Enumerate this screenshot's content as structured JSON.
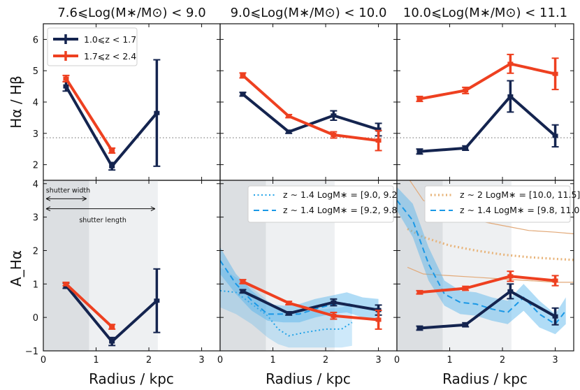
{
  "chart_data": {
    "type": "line",
    "figure": {
      "xlabel": "Radius / kpc",
      "ylabel_top": "Hα / Hβ",
      "ylabel_bottom": "A_Hα",
      "xlim": [
        0,
        3.35
      ],
      "xticks": [
        0,
        1,
        2,
        3
      ],
      "ylim_top": [
        1.5,
        6.5
      ],
      "yticks_top": [
        2,
        3,
        4,
        5,
        6
      ],
      "ylim_bottom": [
        -1,
        4.1
      ],
      "yticks_bottom": [
        -1,
        0,
        1,
        2,
        3,
        4
      ],
      "reference_ratio": 2.86
    },
    "panels": [
      {
        "title": "7.6⩽Log(M∗/M⊙) < 9.0",
        "balmer": {
          "legend": true,
          "series": [
            {
              "name": "1.0⩽z < 1.7",
              "color": "#14244f",
              "x": [
                0.43,
                1.3,
                2.15
              ],
              "y": [
                4.5,
                1.95,
                3.65
              ],
              "err": [
                0.15,
                0.12,
                1.7
              ]
            },
            {
              "name": "1.7⩽z < 2.4",
              "color": "#ee4020",
              "x": [
                0.43,
                1.3
              ],
              "y": [
                4.75,
                2.45
              ],
              "err": [
                0.1,
                0.08
              ]
            }
          ]
        },
        "attenuation": {
          "shading": {
            "dark_end": 0.87,
            "light_end": 2.17
          },
          "series": [
            {
              "name": "1.0⩽z < 1.7",
              "color": "#14244f",
              "x": [
                0.43,
                1.3,
                2.15
              ],
              "y": [
                0.95,
                -0.72,
                0.5
              ],
              "err": [
                0.08,
                0.12,
                0.95
              ]
            },
            {
              "name": "1.7⩽z < 2.4",
              "color": "#ee4020",
              "x": [
                0.43,
                1.3
              ],
              "y": [
                1.0,
                -0.28
              ],
              "err": [
                0.05,
                0.07
              ]
            }
          ],
          "annotations": [
            {
              "text": "shutter width",
              "x": 0.05,
              "y": 3.73
            },
            {
              "text": "shutter length",
              "x": 0.68,
              "y": 2.85
            }
          ]
        }
      },
      {
        "title": "9.0⩽Log(M∗/M⊙) < 10.0",
        "balmer": {
          "series": [
            {
              "name": "1.0⩽z < 1.7",
              "color": "#14244f",
              "x": [
                0.43,
                1.3,
                2.15,
                3.0
              ],
              "y": [
                4.25,
                3.05,
                3.57,
                3.12
              ],
              "err": [
                0.06,
                0.05,
                0.15,
                0.2
              ]
            },
            {
              "name": "1.7⩽z < 2.4",
              "color": "#ee4020",
              "x": [
                0.43,
                1.3,
                2.15,
                3.0
              ],
              "y": [
                4.85,
                3.55,
                2.95,
                2.77
              ],
              "err": [
                0.08,
                0.05,
                0.1,
                0.32
              ]
            }
          ]
        },
        "attenuation": {
          "shading": {
            "dark_end": 0.87,
            "light_end": 2.17
          },
          "series": [
            {
              "name": "1.0⩽z < 1.7",
              "color": "#14244f",
              "x": [
                0.43,
                1.3,
                2.15,
                3.0
              ],
              "y": [
                0.78,
                0.12,
                0.45,
                0.22
              ],
              "err": [
                0.05,
                0.05,
                0.1,
                0.15
              ]
            },
            {
              "name": "1.7⩽z < 2.4",
              "color": "#ee4020",
              "x": [
                0.43,
                1.3,
                2.15,
                3.0
              ],
              "y": [
                1.07,
                0.43,
                0.05,
                -0.07
              ],
              "err": [
                0.06,
                0.05,
                0.1,
                0.28
              ]
            }
          ],
          "legend": [
            {
              "label": "z ∼ 1.4 LogM∗ = [9.0, 9.2]",
              "style": "dotted",
              "color": "#22a3e8"
            },
            {
              "label": "z ∼ 1.4 LogM∗ = [9.2, 9.8]",
              "style": "dashed",
              "color": "#1a98e6"
            }
          ],
          "literature": [
            {
              "name": "z ∼ 1.4 LogM∗ = [9.0, 9.2]",
              "style": "dotted",
              "color": "#22a3e8",
              "x": [
                0,
                0.3,
                0.6,
                0.9,
                1.1,
                1.3,
                1.6,
                2.0,
                2.3,
                2.5
              ],
              "y": [
                0.8,
                0.75,
                0.4,
                0.05,
                -0.35,
                -0.55,
                -0.45,
                -0.35,
                -0.35,
                -0.15
              ],
              "lo": [
                0.3,
                0.1,
                -0.2,
                -0.6,
                -0.8,
                -0.9,
                -0.9,
                -0.9,
                -0.9,
                -0.85
              ],
              "hi": [
                1.5,
                1.2,
                0.9,
                0.5,
                0.3,
                0.15,
                0.2,
                0.25,
                0.3,
                0.4
              ]
            },
            {
              "name": "z ∼ 1.4 LogM∗ = [9.2, 9.8]",
              "style": "dashed",
              "color": "#1a98e6",
              "x": [
                0,
                0.3,
                0.6,
                0.9,
                1.2,
                1.5,
                1.8,
                2.1,
                2.4,
                2.7,
                3.0
              ],
              "y": [
                1.7,
                1.0,
                0.5,
                0.1,
                0.1,
                0.1,
                0.25,
                0.38,
                0.42,
                0.28,
                0.25
              ],
              "lo": [
                1.3,
                0.7,
                0.2,
                -0.1,
                -0.15,
                -0.15,
                0.0,
                0.1,
                0.15,
                0.0,
                -0.05
              ],
              "hi": [
                2.1,
                1.3,
                0.8,
                0.4,
                0.35,
                0.4,
                0.55,
                0.65,
                0.75,
                0.6,
                0.55
              ]
            }
          ]
        }
      },
      {
        "title": "10.0⩽Log(M∗/M⊙) < 11.1",
        "balmer": {
          "series": [
            {
              "name": "1.0⩽z < 1.7",
              "color": "#14244f",
              "x": [
                0.43,
                1.3,
                2.15,
                3.0
              ],
              "y": [
                2.42,
                2.53,
                4.18,
                2.92
              ],
              "err": [
                0.08,
                0.07,
                0.5,
                0.35
              ]
            },
            {
              "name": "1.7⩽z < 2.4",
              "color": "#ee4020",
              "x": [
                0.43,
                1.3,
                2.15,
                3.0
              ],
              "y": [
                4.1,
                4.37,
                5.22,
                4.9
              ],
              "err": [
                0.08,
                0.1,
                0.3,
                0.5
              ]
            }
          ]
        },
        "attenuation": {
          "shading": {
            "dark_end": 0.87,
            "light_end": 2.17
          },
          "series": [
            {
              "name": "1.0⩽z < 1.7",
              "color": "#14244f",
              "x": [
                0.43,
                1.3,
                2.15,
                3.0
              ],
              "y": [
                -0.32,
                -0.22,
                0.78,
                0.03
              ],
              "err": [
                0.06,
                0.06,
                0.22,
                0.25
              ]
            },
            {
              "name": "1.7⩽z < 2.4",
              "color": "#ee4020",
              "x": [
                0.43,
                1.3,
                2.15,
                3.0
              ],
              "y": [
                0.75,
                0.87,
                1.23,
                1.1
              ],
              "err": [
                0.05,
                0.06,
                0.15,
                0.15
              ]
            }
          ],
          "legend": [
            {
              "label": "z ∼ 2 LogM∗ = [10.0, 11.5]",
              "style": "dotted",
              "color": "#e8b47a"
            },
            {
              "label": "z ∼ 1.4 LogM∗ = [9.8, 11.0]",
              "style": "dashed",
              "color": "#1a98e6"
            }
          ],
          "literature": [
            {
              "name": "z ∼ 2 LogM∗ = [10.0, 11.5]",
              "style": "dotted",
              "color": "#e8b47a",
              "x": [
                0.2,
                0.5,
                1.0,
                1.5,
                2.0,
                2.5,
                3.0,
                3.35
              ],
              "y": [
                2.65,
                2.4,
                2.15,
                2.0,
                1.88,
                1.8,
                1.75,
                1.72
              ],
              "lo": [
                1.5,
                1.3,
                1.25,
                1.2,
                1.15,
                1.1,
                1.05,
                1.05
              ],
              "hi": [
                4.2,
                3.5,
                3.1,
                2.9,
                2.75,
                2.6,
                2.55,
                2.5
              ]
            },
            {
              "name": "z ∼ 1.4 LogM∗ = [9.8, 11.0]",
              "style": "dashed",
              "color": "#1a98e6",
              "x": [
                0,
                0.3,
                0.6,
                0.9,
                1.2,
                1.5,
                1.8,
                2.1,
                2.4,
                2.7,
                3.0,
                3.2
              ],
              "y": [
                3.5,
                2.9,
                1.6,
                0.7,
                0.45,
                0.4,
                0.25,
                0.15,
                0.6,
                0.1,
                -0.2,
                0.2
              ],
              "lo": [
                3.2,
                2.4,
                1.1,
                0.35,
                0.1,
                0.05,
                -0.1,
                -0.2,
                0.2,
                -0.3,
                -0.5,
                -0.2
              ],
              "hi": [
                3.9,
                3.4,
                2.1,
                1.1,
                0.8,
                0.75,
                0.6,
                0.5,
                1.0,
                0.5,
                0.1,
                0.6
              ]
            }
          ]
        }
      }
    ]
  }
}
